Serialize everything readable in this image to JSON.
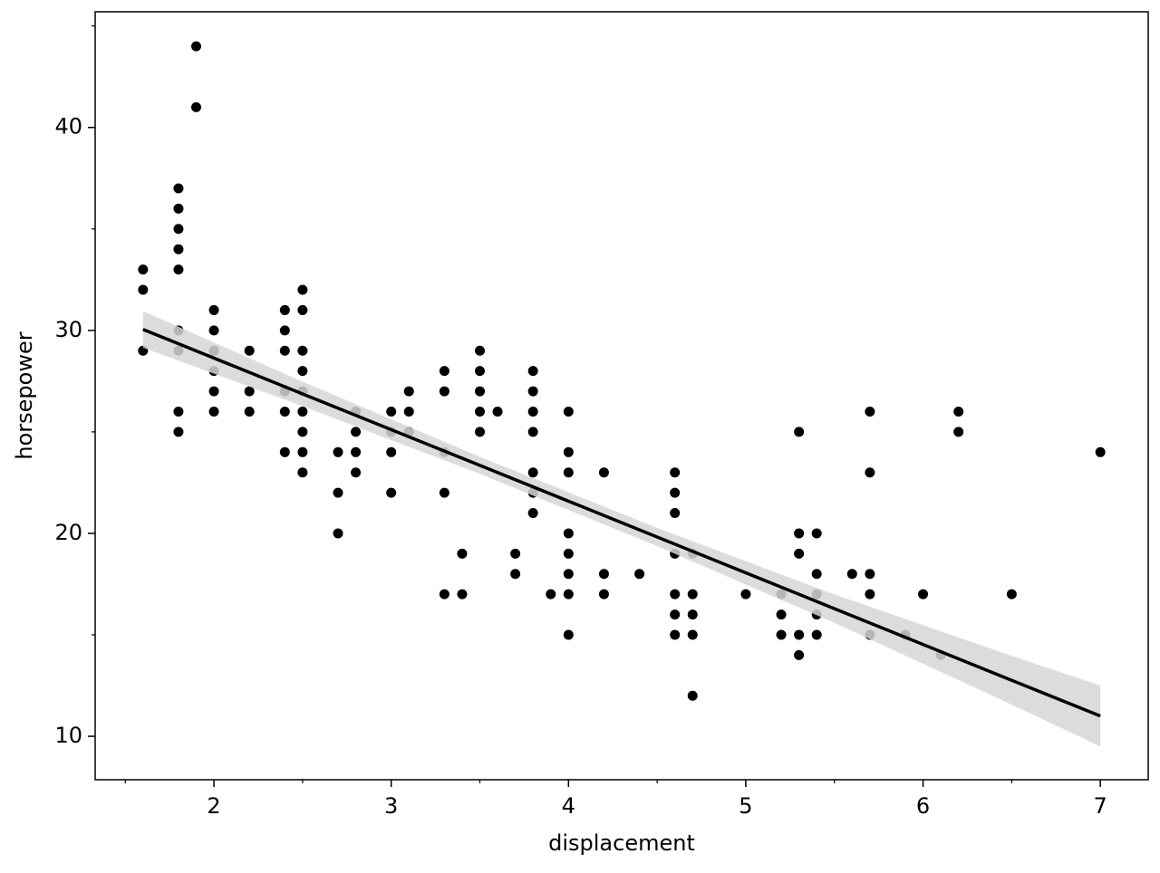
{
  "chart_data": {
    "type": "scatter",
    "x_label": "displacement",
    "y_label": "horsepower",
    "x": [
      1.6,
      1.6,
      1.6,
      1.8,
      1.8,
      1.8,
      1.8,
      1.8,
      1.8,
      1.8,
      1.8,
      1.8,
      1.9,
      1.9,
      2.0,
      2.0,
      2.0,
      2.0,
      2.0,
      2.0,
      2.2,
      2.2,
      2.2,
      2.4,
      2.4,
      2.4,
      2.4,
      2.4,
      2.4,
      2.5,
      2.5,
      2.5,
      2.5,
      2.5,
      2.5,
      2.5,
      2.5,
      2.5,
      2.7,
      2.7,
      2.7,
      2.8,
      2.8,
      2.8,
      2.8,
      3.0,
      3.0,
      3.0,
      3.0,
      3.1,
      3.1,
      3.1,
      3.3,
      3.3,
      3.3,
      3.3,
      3.3,
      3.4,
      3.4,
      3.5,
      3.5,
      3.5,
      3.5,
      3.5,
      3.6,
      3.7,
      3.7,
      3.8,
      3.8,
      3.8,
      3.8,
      3.8,
      3.8,
      3.8,
      3.9,
      4.0,
      4.0,
      4.0,
      4.0,
      4.0,
      4.0,
      4.0,
      4.0,
      4.2,
      4.2,
      4.2,
      4.4,
      4.6,
      4.6,
      4.6,
      4.6,
      4.6,
      4.6,
      4.6,
      4.7,
      4.7,
      4.7,
      4.7,
      4.7,
      5.0,
      5.2,
      5.2,
      5.2,
      5.3,
      5.3,
      5.3,
      5.3,
      5.3,
      5.4,
      5.4,
      5.4,
      5.4,
      5.4,
      5.6,
      5.7,
      5.7,
      5.7,
      5.7,
      5.7,
      5.9,
      6.0,
      6.1,
      6.2,
      6.2,
      6.5,
      7.0
    ],
    "values": [
      33,
      32,
      29,
      37,
      36,
      35,
      34,
      33,
      30,
      29,
      26,
      25,
      44,
      41,
      31,
      30,
      29,
      28,
      27,
      26,
      29,
      27,
      26,
      31,
      30,
      29,
      27,
      26,
      24,
      32,
      31,
      29,
      28,
      27,
      26,
      25,
      24,
      23,
      24,
      22,
      20,
      26,
      25,
      24,
      23,
      26,
      25,
      24,
      22,
      27,
      26,
      25,
      28,
      27,
      24,
      22,
      17,
      19,
      17,
      29,
      28,
      27,
      26,
      25,
      26,
      19,
      18,
      28,
      27,
      26,
      25,
      23,
      22,
      21,
      17,
      26,
      24,
      23,
      20,
      19,
      18,
      17,
      15,
      23,
      18,
      17,
      18,
      23,
      22,
      21,
      19,
      17,
      16,
      15,
      19,
      17,
      16,
      15,
      12,
      17,
      17,
      16,
      15,
      25,
      20,
      19,
      15,
      14,
      20,
      18,
      17,
      16,
      15,
      18,
      26,
      23,
      18,
      17,
      15,
      15,
      17,
      14,
      26,
      25,
      17,
      24
    ],
    "color": "#000000",
    "fit": {
      "x": [
        1.6,
        2.5,
        3.5,
        4.5,
        5.5,
        6.5,
        7.0
      ],
      "y": [
        30.05,
        26.87,
        23.35,
        19.82,
        16.29,
        12.76,
        11.0
      ],
      "ci_lower": [
        29.15,
        26.27,
        22.93,
        19.37,
        15.59,
        11.56,
        9.5
      ],
      "ci_upper": [
        30.95,
        27.47,
        23.77,
        20.27,
        16.99,
        13.96,
        12.5
      ],
      "color": "#000000",
      "band_color": "#d6d6d6"
    },
    "xlim": [
      1.33,
      7.27
    ],
    "ylim": [
      7.86,
      45.7
    ],
    "xticks": [
      2,
      3,
      4,
      5,
      6,
      7
    ],
    "yticks": [
      10,
      20,
      30,
      40
    ],
    "xminorticks": [
      1.5,
      2.5,
      3.5,
      4.5,
      5.5,
      6.5
    ],
    "yminorticks": [
      15,
      25,
      35,
      45
    ]
  }
}
